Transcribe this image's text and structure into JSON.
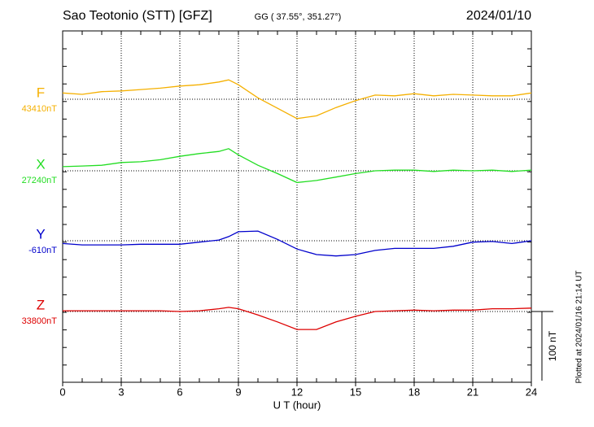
{
  "chart_data": {
    "type": "line",
    "title": "Sao Teotonio (STT)  [GFZ]",
    "subtitle": "GG ( 37.55°, 351.27°)",
    "date": "2024/01/10",
    "xlabel": "U T (hour)",
    "note": "Plotted at 2024/01/16 21:14 UT",
    "scale_bar": {
      "value": 100,
      "label": "100 nT"
    },
    "xlim": [
      0,
      24
    ],
    "xticks": [
      0,
      3,
      6,
      9,
      12,
      15,
      18,
      21,
      24
    ],
    "grid": true,
    "x": [
      0,
      1,
      2,
      3,
      4,
      5,
      6,
      7,
      8,
      8.5,
      9,
      10,
      11,
      12,
      13,
      14,
      15,
      16,
      17,
      18,
      19,
      20,
      21,
      22,
      23,
      24
    ],
    "series": [
      {
        "name": "F",
        "color": "#f5b000",
        "baseline": {
          "value": 43410,
          "label": "43410nT"
        },
        "values": [
          43419,
          43417,
          43421,
          43422,
          43424,
          43426,
          43429,
          43431,
          43435,
          43438,
          43431,
          43412,
          43397,
          43382,
          43386,
          43398,
          43408,
          43416,
          43415,
          43418,
          43415,
          43417,
          43416,
          43415,
          43415,
          43419
        ]
      },
      {
        "name": "X",
        "color": "#22dd22",
        "baseline": {
          "value": 27240,
          "label": "27240nT"
        },
        "values": [
          27246,
          27247,
          27248,
          27252,
          27253,
          27256,
          27261,
          27265,
          27268,
          27272,
          27263,
          27248,
          27236,
          27223,
          27226,
          27231,
          27236,
          27240,
          27241,
          27241,
          27239,
          27241,
          27240,
          27241,
          27239,
          27241
        ]
      },
      {
        "name": "Y",
        "color": "#0000cc",
        "baseline": {
          "value": -610,
          "label": "-610nT"
        },
        "values": [
          -614,
          -616,
          -616,
          -616,
          -615,
          -615,
          -615,
          -612,
          -609,
          -604,
          -597,
          -596,
          -608,
          -622,
          -630,
          -632,
          -630,
          -624,
          -621,
          -621,
          -621,
          -618,
          -612,
          -611,
          -614,
          -610
        ]
      },
      {
        "name": "Z",
        "color": "#dd0000",
        "baseline": {
          "value": 33800,
          "label": "33800nT"
        },
        "values": [
          33801,
          33801,
          33801,
          33801,
          33801,
          33801,
          33800,
          33801,
          33804,
          33806,
          33804,
          33795,
          33785,
          33774,
          33774,
          33785,
          33793,
          33800,
          33801,
          33802,
          33801,
          33802,
          33802,
          33804,
          33804,
          33805
        ]
      }
    ]
  }
}
